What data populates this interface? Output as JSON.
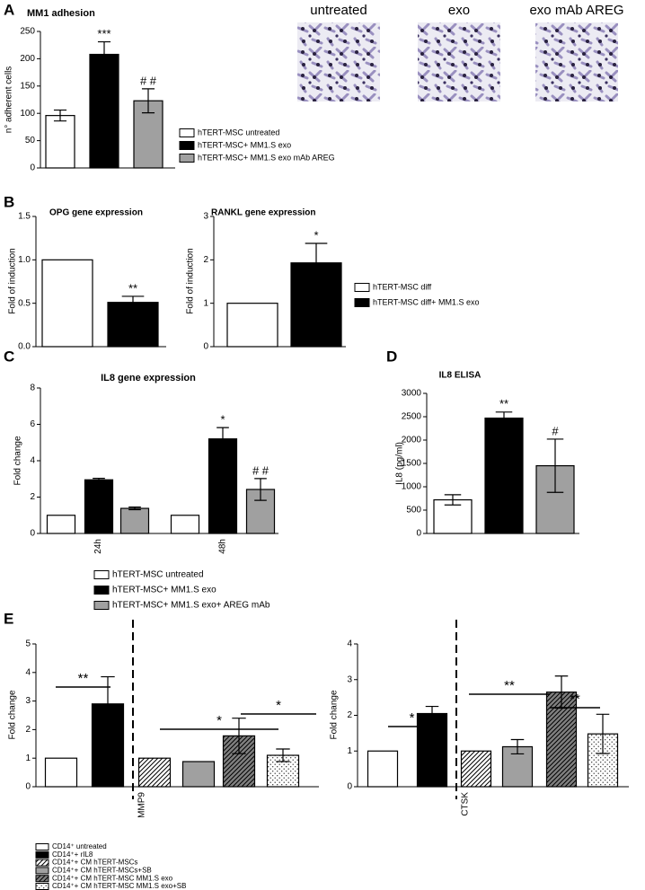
{
  "panel_labels": [
    "A",
    "B",
    "C",
    "D",
    "E"
  ],
  "images": {
    "labels": [
      "untreated",
      "exo",
      "exo mAb AREG"
    ]
  },
  "chart_data": [
    {
      "type": "bar",
      "title": "MM1 adhesion",
      "y_label": "n° adherent cells",
      "ylim": [
        0,
        250
      ],
      "yticks": [
        0,
        50,
        100,
        150,
        200,
        250
      ],
      "categories": [
        null
      ],
      "series": [
        {
          "name": "hTERT-MSC untreated",
          "color": "#ffffff",
          "fill_style": "solid",
          "values": [
            96
          ],
          "errors": [
            10
          ]
        },
        {
          "name": "hTERT-MSC+ MM1.S exo",
          "color": "#000000",
          "fill_style": "solid",
          "values": [
            208
          ],
          "errors": [
            23
          ],
          "significance": [
            "***"
          ]
        },
        {
          "name": "hTERT-MSC+ MM1.S exo mAb AREG",
          "color": "#a0a0a0",
          "fill_style": "solid",
          "values": [
            123
          ],
          "errors": [
            22
          ],
          "significance": [
            "# #"
          ]
        }
      ]
    },
    {
      "type": "bar",
      "title": "OPG gene expression",
      "y_label": "Fold of induction",
      "ylim": [
        0,
        1.5
      ],
      "yticks": [
        {
          "value": 0,
          "label": "0.0"
        },
        {
          "value": 0.5,
          "label": "0.5"
        },
        {
          "value": 1,
          "label": "1.0"
        },
        {
          "value": 1.5,
          "label": "1.5"
        }
      ],
      "categories": [
        null
      ],
      "series": [
        {
          "color": "#ffffff",
          "fill_style": "solid",
          "values": [
            1.0
          ]
        },
        {
          "color": "#000000",
          "fill_style": "solid",
          "values": [
            0.51
          ],
          "errors": [
            0.07
          ],
          "significance": [
            "**"
          ]
        }
      ]
    },
    {
      "type": "bar",
      "title": "RANKL gene expression",
      "y_label": "Fold of induction",
      "ylim": [
        0,
        3
      ],
      "yticks": [
        0,
        1,
        2,
        3
      ],
      "categories": [
        null
      ],
      "series": [
        {
          "name": "hTERT-MSC diff",
          "color": "#ffffff",
          "fill_style": "solid",
          "values": [
            1.0
          ]
        },
        {
          "name": "hTERT-MSC diff+ MM1.S exo",
          "color": "#000000",
          "fill_style": "solid",
          "values": [
            1.93
          ],
          "errors": [
            0.45
          ],
          "significance": [
            "*"
          ]
        }
      ]
    },
    {
      "type": "bar",
      "title": "IL8 gene expression",
      "y_label": "Fold change",
      "ylim": [
        0,
        8
      ],
      "yticks": [
        0,
        2,
        4,
        6,
        8
      ],
      "categories": [
        "24h",
        "48h"
      ],
      "series": [
        {
          "name": "hTERT-MSC untreated",
          "color": "#ffffff",
          "fill_style": "solid",
          "values": [
            1,
            1
          ]
        },
        {
          "name": "hTERT-MSC+ MM1.S exo",
          "color": "#000000",
          "fill_style": "solid",
          "values": [
            2.95,
            5.2
          ],
          "errors": [
            0.08,
            0.62
          ],
          "significance": [
            null,
            "*"
          ]
        },
        {
          "name": "hTERT-MSC+ MM1.S  exo+ AREG mAb",
          "color": "#a0a0a0",
          "fill_style": "solid",
          "values": [
            1.38,
            2.42
          ],
          "errors": [
            0.07,
            0.6
          ],
          "significance": [
            null,
            "# #"
          ]
        }
      ]
    },
    {
      "type": "bar",
      "title": "IL8 ELISA",
      "y_label": "IL8 (pg/ml)",
      "ylim": [
        0,
        3000
      ],
      "yticks": [
        0,
        500,
        1000,
        1500,
        2000,
        2500,
        3000
      ],
      "categories": [
        null
      ],
      "series": [
        {
          "color": "#ffffff",
          "fill_style": "solid",
          "values": [
            720
          ],
          "errors": [
            110
          ]
        },
        {
          "color": "#000000",
          "fill_style": "solid",
          "values": [
            2470
          ],
          "errors": [
            130
          ],
          "significance": [
            "**"
          ]
        },
        {
          "color": "#a0a0a0",
          "fill_style": "solid",
          "values": [
            1450
          ],
          "errors": [
            570
          ],
          "significance": [
            "#"
          ]
        }
      ]
    },
    {
      "type": "bar",
      "y_label": "Fold change",
      "ylim": [
        0,
        5
      ],
      "yticks": [
        0,
        1,
        2,
        3,
        4,
        5
      ],
      "categories": [
        null,
        "MMP9"
      ],
      "brackets": [
        "**",
        "*",
        "*"
      ],
      "series": [
        {
          "name": "CD14⁺ untreated",
          "color": "#ffffff",
          "fill_style": "solid",
          "values": [
            1,
            null
          ]
        },
        {
          "name": "CD14⁺+ rIL8",
          "color": "#000000",
          "fill_style": "solid",
          "values": [
            2.9,
            null
          ],
          "errors": [
            0.95,
            null
          ]
        },
        {
          "name": "CD14⁺+ CM hTERT-MSCs",
          "color": "#ffffff",
          "fill_style": "hatch",
          "values": [
            null,
            1
          ]
        },
        {
          "name": "CD14⁺+ CM hTERT-MSCs+SB",
          "color": "#a0a0a0",
          "fill_style": "solid",
          "values": [
            null,
            0.88
          ]
        },
        {
          "name": "CD14⁺+ CM hTERT-MSC MM1.S exo",
          "color": "#808080",
          "fill_style": "hatch",
          "values": [
            null,
            1.78
          ],
          "errors": [
            null,
            0.62
          ]
        },
        {
          "name": "CD14⁺+ CM hTERT-MSC MM1.S exo+SB",
          "color": "#ffffff",
          "fill_style": "dots",
          "values": [
            null,
            1.1
          ],
          "errors": [
            null,
            0.22
          ]
        }
      ]
    },
    {
      "type": "bar",
      "y_label": "Fold change",
      "ylim": [
        0,
        4
      ],
      "yticks": [
        0,
        1,
        2,
        3,
        4
      ],
      "categories": [
        null,
        "CTSK"
      ],
      "brackets": [
        "*",
        "**",
        "**"
      ],
      "series": [
        {
          "color": "#ffffff",
          "fill_style": "solid",
          "values": [
            1,
            null
          ]
        },
        {
          "color": "#000000",
          "fill_style": "solid",
          "values": [
            2.05,
            null
          ],
          "errors": [
            0.2,
            null
          ]
        },
        {
          "color": "#ffffff",
          "fill_style": "hatch",
          "values": [
            null,
            1
          ]
        },
        {
          "color": "#a0a0a0",
          "fill_style": "solid",
          "values": [
            null,
            1.12
          ],
          "errors": [
            null,
            0.2
          ]
        },
        {
          "color": "#808080",
          "fill_style": "hatch",
          "values": [
            null,
            2.65
          ],
          "errors": [
            null,
            0.45
          ]
        },
        {
          "color": "#ffffff",
          "fill_style": "dots",
          "values": [
            null,
            1.48
          ],
          "errors": [
            null,
            0.55
          ]
        }
      ]
    }
  ]
}
